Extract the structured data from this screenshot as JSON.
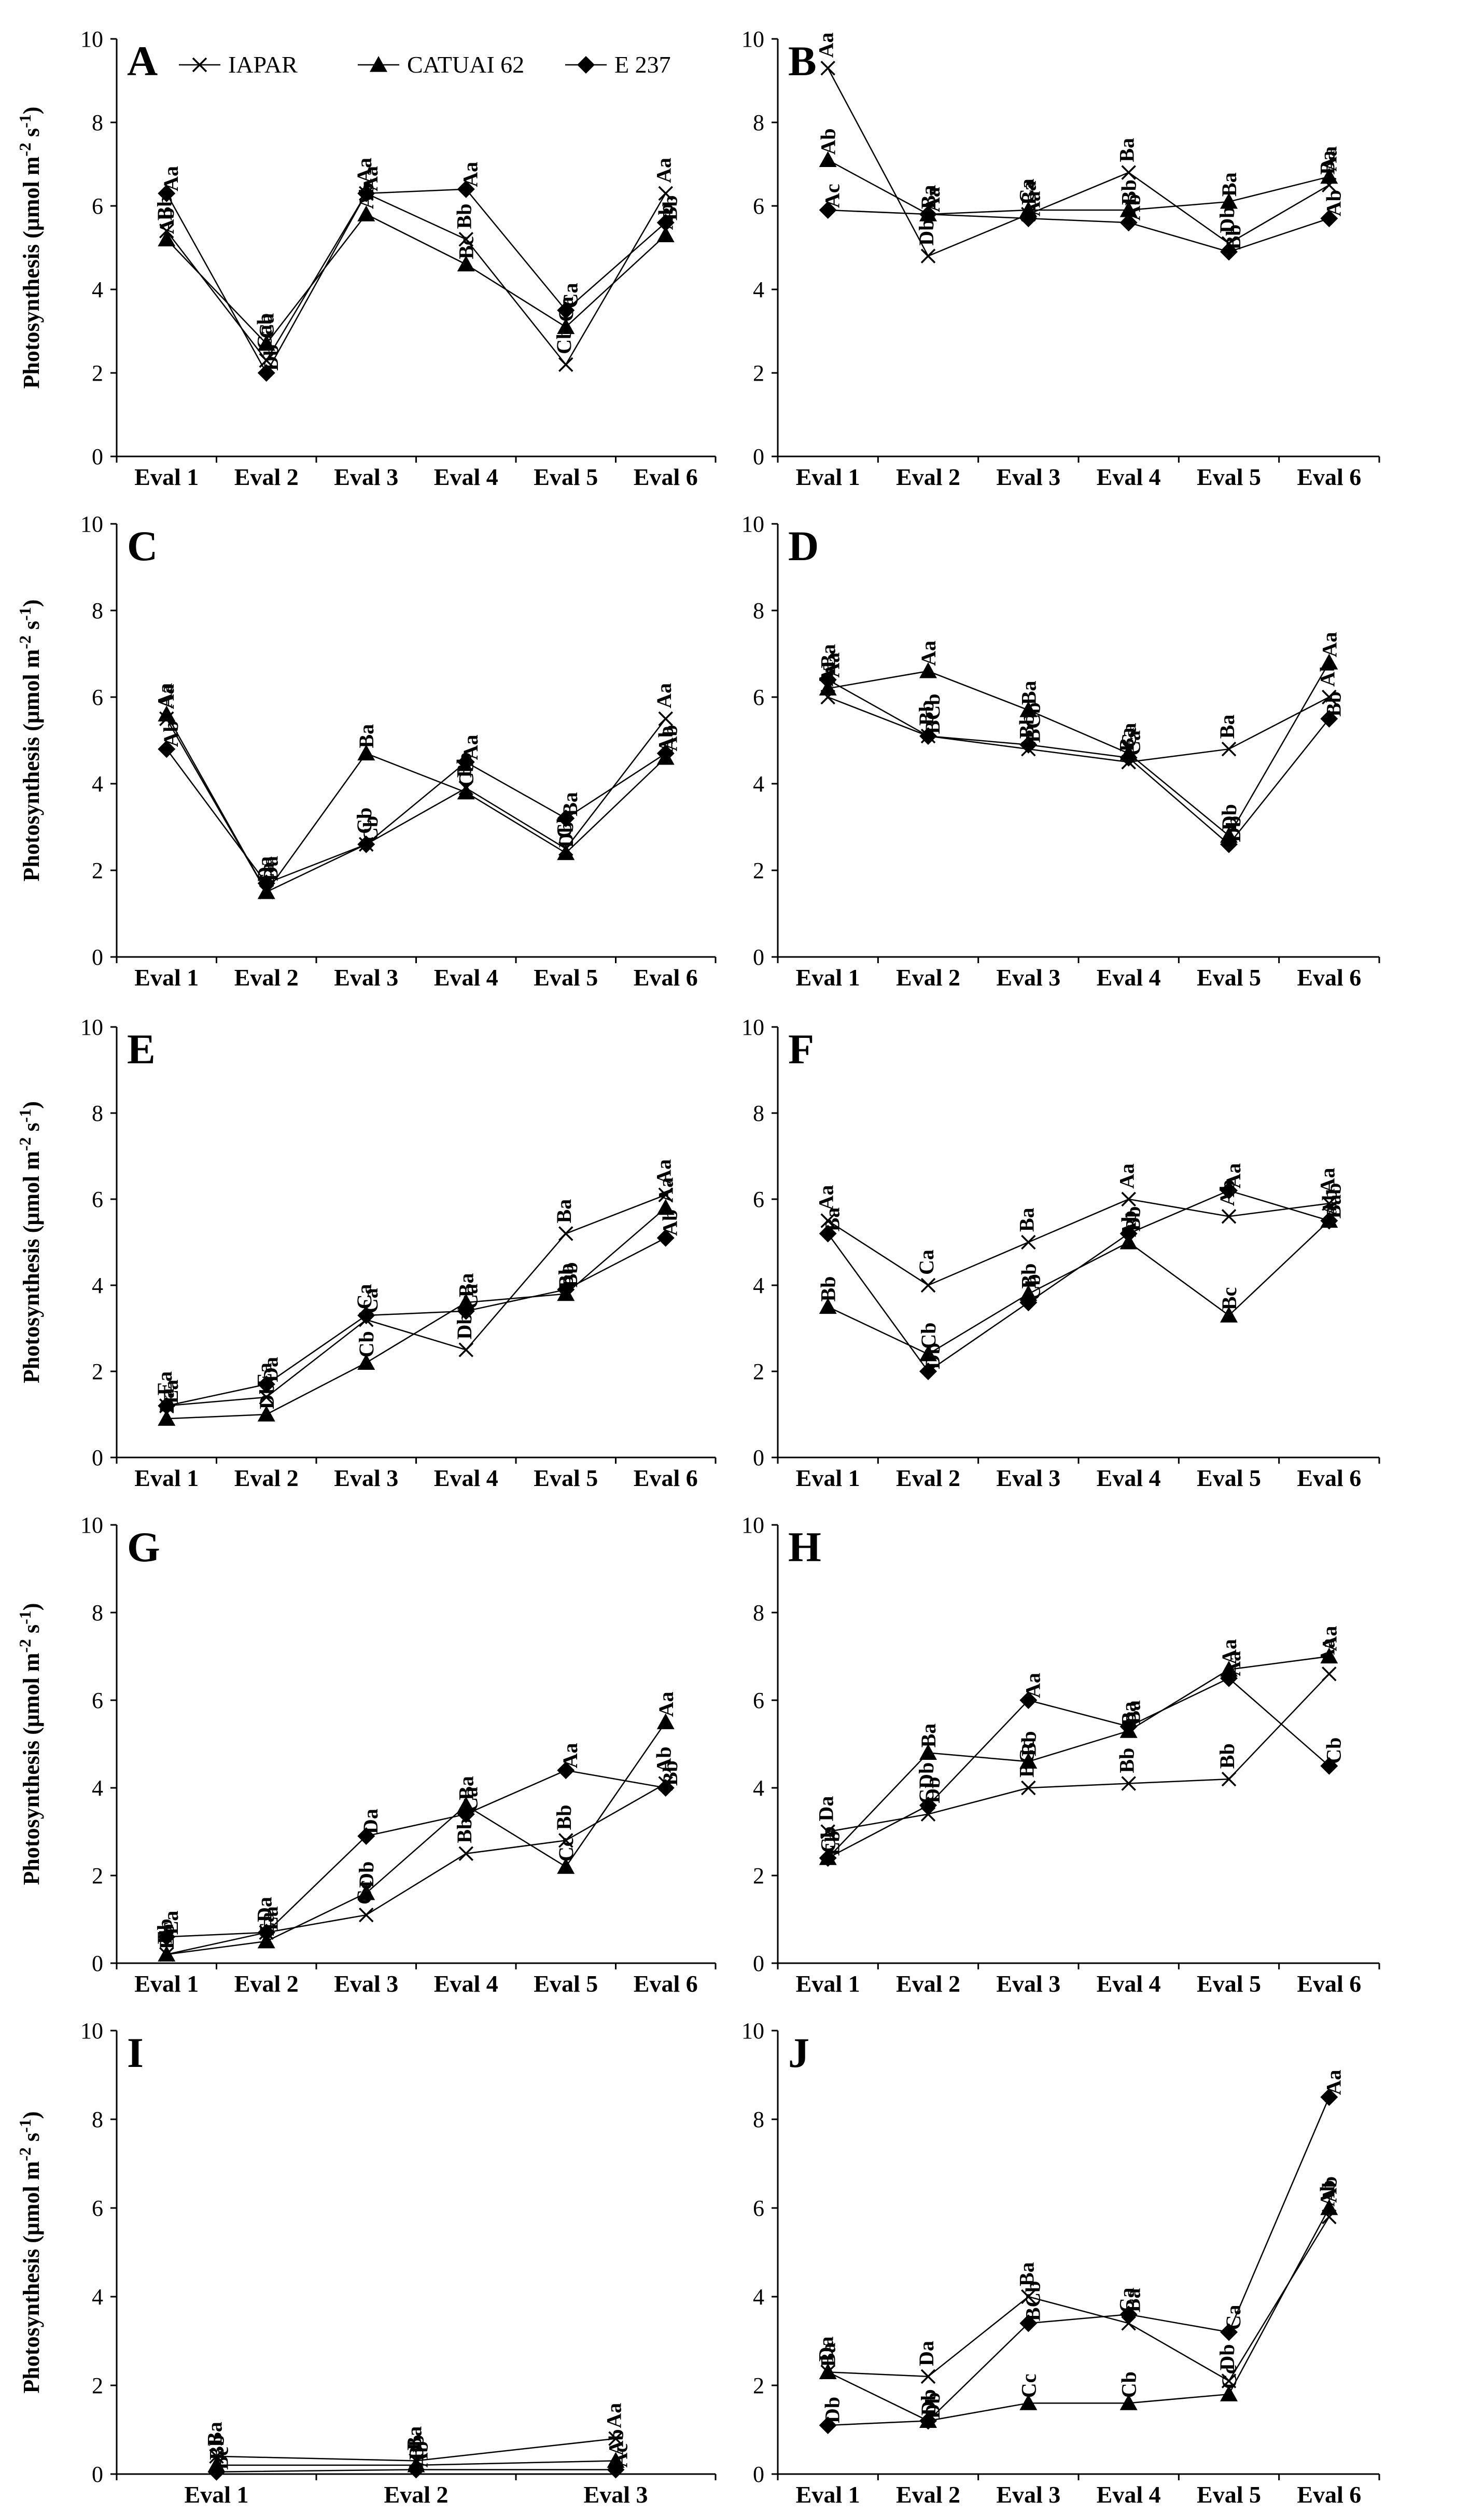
{
  "legend": {
    "entries": [
      "IAPAR",
      "CATUAI 62",
      "E 237"
    ]
  },
  "axis": {
    "ylabel_main": "Photosynthesis (μmol m",
    "ylabel_sup1": "-2",
    "ylabel_mid": " s",
    "ylabel_sup2": "-1",
    "ylabel_end": ")"
  },
  "chart_data": [
    {
      "panel": "A",
      "type": "line",
      "title": "A",
      "ylabel": "Photosynthesis (μmol m-2 s-1)",
      "ylim": [
        0,
        10
      ],
      "yticks": [
        0,
        2,
        4,
        6,
        8,
        10
      ],
      "categories": [
        "Eval 1",
        "Eval 2",
        "Eval 3",
        "Eval 4",
        "Eval 5",
        "Eval 6"
      ],
      "series": [
        {
          "name": "IAPAR",
          "values": [
            5.4,
            2.3,
            6.3,
            5.2,
            2.2,
            6.3
          ],
          "labels": [
            "Bb",
            "Cab",
            "Aa",
            "Bb",
            "Cb",
            "Aa"
          ]
        },
        {
          "name": "CATUAI 62",
          "values": [
            5.2,
            2.7,
            5.8,
            4.6,
            3.1,
            5.3
          ],
          "labels": [
            "Ab",
            "Ca",
            "Ab",
            "Bc",
            "Ca",
            "Ab"
          ]
        },
        {
          "name": "E 237",
          "values": [
            6.3,
            2.0,
            6.3,
            6.4,
            3.5,
            5.6
          ],
          "labels": [
            "Aa",
            "Db",
            "Aa",
            "Aa",
            "Ca",
            "Bb"
          ]
        }
      ]
    },
    {
      "panel": "B",
      "type": "line",
      "title": "B",
      "ylabel": "",
      "ylim": [
        0,
        10
      ],
      "yticks": [
        0,
        2,
        4,
        6,
        8,
        10
      ],
      "categories": [
        "Eval 1",
        "Eval 2",
        "Eval 3",
        "Eval 4",
        "Eval 5",
        "Eval 6"
      ],
      "series": [
        {
          "name": "IAPAR",
          "values": [
            9.3,
            4.8,
            5.8,
            6.8,
            5.1,
            6.5
          ],
          "labels": [
            "Aa",
            "Db",
            "Ca",
            "Ba",
            "Db",
            "Ba"
          ]
        },
        {
          "name": "CATUAI 62",
          "values": [
            7.1,
            5.8,
            5.9,
            5.9,
            6.1,
            6.7
          ],
          "labels": [
            "Ab",
            "Ba",
            "Ba",
            "Bb",
            "Ba",
            "Aa"
          ]
        },
        {
          "name": "E 237",
          "values": [
            5.9,
            5.8,
            5.7,
            5.6,
            4.9,
            5.7
          ],
          "labels": [
            "Ac",
            "Aa",
            "Aa",
            "Ab",
            "Bb",
            "Ab"
          ]
        }
      ]
    },
    {
      "panel": "C",
      "type": "line",
      "title": "C",
      "ylabel": "Photosynthesis (μmol m-2 s-1)",
      "ylim": [
        0,
        10
      ],
      "yticks": [
        0,
        2,
        4,
        6,
        8,
        10
      ],
      "categories": [
        "Eval 1",
        "Eval 2",
        "Eval 3",
        "Eval 4",
        "Eval 5",
        "Eval 6"
      ],
      "series": [
        {
          "name": "IAPAR",
          "values": [
            5.5,
            1.5,
            2.6,
            3.9,
            2.5,
            5.5
          ],
          "labels": [
            "Aa",
            "Da",
            "Cb",
            "Bb",
            "Cb",
            "Aa"
          ]
        },
        {
          "name": "CATUAI 62",
          "values": [
            5.6,
            1.5,
            4.7,
            3.8,
            2.4,
            4.6
          ],
          "labels": [
            "Aa",
            "Ea",
            "Ba",
            "Cb",
            "Db",
            "Ab"
          ]
        },
        {
          "name": "E 237",
          "values": [
            4.8,
            1.7,
            2.6,
            4.5,
            3.2,
            4.7
          ],
          "labels": [
            "Ab",
            "Da",
            "Cb",
            "Aa",
            "Ba",
            "Ab"
          ]
        }
      ]
    },
    {
      "panel": "D",
      "type": "line",
      "title": "D",
      "ylabel": "",
      "ylim": [
        0,
        10
      ],
      "yticks": [
        0,
        2,
        4,
        6,
        8,
        10
      ],
      "categories": [
        "Eval 1",
        "Eval 2",
        "Eval 3",
        "Eval 4",
        "Eval 5",
        "Eval 6"
      ],
      "series": [
        {
          "name": "IAPAR",
          "values": [
            6.0,
            5.1,
            4.8,
            4.5,
            4.8,
            6.0
          ],
          "labels": [
            "Aa",
            "Bb",
            "Bb",
            "Ba",
            "Ba",
            "Ab"
          ]
        },
        {
          "name": "CATUAI 62",
          "values": [
            6.2,
            6.6,
            5.7,
            4.7,
            2.8,
            6.8
          ],
          "labels": [
            "ABa",
            "Aa",
            "Ba",
            "Ca",
            "Db",
            "Aa"
          ]
        },
        {
          "name": "E 237",
          "values": [
            6.4,
            5.1,
            4.9,
            4.6,
            2.6,
            5.5
          ],
          "labels": [
            "Aa",
            "BCb",
            "BCb",
            "Ca",
            "Db",
            "Bb"
          ]
        }
      ]
    },
    {
      "panel": "E",
      "type": "line",
      "title": "E",
      "ylabel": "Photosynthesis (μmol m-2 s-1)",
      "ylim": [
        0,
        10
      ],
      "yticks": [
        0,
        2,
        4,
        6,
        8,
        10
      ],
      "categories": [
        "Eval 1",
        "Eval 2",
        "Eval 3",
        "Eval 4",
        "Eval 5",
        "Eval 6"
      ],
      "series": [
        {
          "name": "IAPAR",
          "values": [
            1.2,
            1.4,
            3.2,
            2.5,
            5.2,
            6.1
          ],
          "labels": [
            "Ea",
            "Ea",
            "Ca",
            "Db",
            "Ba",
            "Aa"
          ]
        },
        {
          "name": "CATUAI 62",
          "values": [
            0.9,
            1.0,
            2.2,
            3.6,
            3.8,
            5.8
          ],
          "labels": [
            "Da",
            "Db",
            "Cb",
            "Ba",
            "Bb",
            "Aa"
          ]
        },
        {
          "name": "E 237",
          "values": [
            1.2,
            1.7,
            3.3,
            3.4,
            3.9,
            5.1
          ],
          "labels": [
            "Ea",
            "Da",
            "Ca",
            "Ca",
            "Bb",
            "Ab"
          ]
        }
      ]
    },
    {
      "panel": "F",
      "type": "line",
      "title": "F",
      "ylabel": "",
      "ylim": [
        0,
        10
      ],
      "yticks": [
        0,
        2,
        4,
        6,
        8,
        10
      ],
      "categories": [
        "Eval 1",
        "Eval 2",
        "Eval 3",
        "Eval 4",
        "Eval 5",
        "Eval 6"
      ],
      "series": [
        {
          "name": "IAPAR",
          "values": [
            5.5,
            4.0,
            5.0,
            6.0,
            5.6,
            5.9
          ],
          "labels": [
            "Aa",
            "Ca",
            "Ba",
            "Aa",
            "Ab",
            "Aa"
          ]
        },
        {
          "name": "CATUAI 62",
          "values": [
            3.5,
            2.4,
            3.8,
            5.0,
            3.3,
            5.5
          ],
          "labels": [
            "Bb",
            "Cb",
            "Bb",
            "Ab",
            "Bc",
            "Ab"
          ]
        },
        {
          "name": "E 237",
          "values": [
            5.2,
            2.0,
            3.6,
            5.2,
            6.2,
            5.5
          ],
          "labels": [
            "Ba",
            "Db",
            "Cb",
            "Bb",
            "Aa",
            "Bab"
          ]
        }
      ]
    },
    {
      "panel": "G",
      "type": "line",
      "title": "G",
      "ylabel": "Photosynthesis (μmol m-2 s-1)",
      "ylim": [
        0,
        10
      ],
      "yticks": [
        0,
        2,
        4,
        6,
        8,
        10
      ],
      "categories": [
        "Eval 1",
        "Eval 2",
        "Eval 3",
        "Eval 4",
        "Eval 5",
        "Eval 6"
      ],
      "series": [
        {
          "name": "IAPAR",
          "values": [
            0.2,
            0.7,
            1.1,
            2.5,
            2.8,
            4.1
          ],
          "labels": [
            "Eb",
            "Da",
            "Cc",
            "Bb",
            "Bb",
            "Ab"
          ]
        },
        {
          "name": "CATUAI 62",
          "values": [
            0.2,
            0.5,
            1.6,
            3.6,
            2.2,
            5.5
          ],
          "labels": [
            "Eb",
            "Ea",
            "Db",
            "Ba",
            "Cc",
            "Aa"
          ]
        },
        {
          "name": "E 237",
          "values": [
            0.6,
            0.7,
            2.9,
            3.4,
            4.4,
            4.0
          ],
          "labels": [
            "Ea",
            "Ea",
            "Da",
            "Ca",
            "Aa",
            "Bb"
          ]
        }
      ]
    },
    {
      "panel": "H",
      "type": "line",
      "title": "H",
      "ylabel": "",
      "ylim": [
        0,
        10
      ],
      "yticks": [
        0,
        2,
        4,
        6,
        8,
        10
      ],
      "categories": [
        "Eval 1",
        "Eval 2",
        "Eval 3",
        "Eval 4",
        "Eval 5",
        "Eval 6"
      ],
      "series": [
        {
          "name": "IAPAR",
          "values": [
            3.0,
            3.4,
            4.0,
            4.1,
            4.2,
            6.6
          ],
          "labels": [
            "Da",
            "CDb",
            "BCc",
            "Bb",
            "Bb",
            "Aa"
          ]
        },
        {
          "name": "CATUAI 62",
          "values": [
            2.4,
            4.8,
            4.6,
            5.3,
            6.7,
            7.0
          ],
          "labels": [
            "Cb",
            "Ba",
            "Bb",
            "Ba",
            "Aa",
            "Aa"
          ]
        },
        {
          "name": "E 237",
          "values": [
            2.4,
            3.6,
            6.0,
            5.4,
            6.5,
            4.5
          ],
          "labels": [
            "Eb",
            "Db",
            "Aa",
            "Ba",
            "Aa",
            "Cb"
          ]
        }
      ]
    },
    {
      "panel": "I",
      "type": "line",
      "title": "I",
      "ylabel": "Photosynthesis (μmol m-2 s-1)",
      "ylim": [
        0,
        10
      ],
      "yticks": [
        0,
        2,
        4,
        6,
        8,
        10
      ],
      "categories": [
        "Eval 1",
        "Eval 2",
        "Eval 3"
      ],
      "series": [
        {
          "name": "IAPAR",
          "values": [
            0.4,
            0.3,
            0.8
          ],
          "labels": [
            "Ba",
            "Ba",
            "Aa"
          ]
        },
        {
          "name": "CATUAI 62",
          "values": [
            0.2,
            0.2,
            0.3
          ],
          "labels": [
            "Bb",
            "Bb",
            "Ab"
          ]
        },
        {
          "name": "E 237",
          "values": [
            0.05,
            0.1,
            0.1
          ],
          "labels": [
            "Bc",
            "Ab",
            "Ac"
          ]
        }
      ]
    },
    {
      "panel": "J",
      "type": "line",
      "title": "J",
      "ylabel": "",
      "ylim": [
        0,
        10
      ],
      "yticks": [
        0,
        2,
        4,
        6,
        8,
        10
      ],
      "categories": [
        "Eval 1",
        "Eval 2",
        "Eval 3",
        "Eval 4",
        "Eval 5",
        "Eval 6"
      ],
      "series": [
        {
          "name": "IAPAR",
          "values": [
            2.3,
            2.2,
            4.0,
            3.4,
            2.1,
            5.8
          ],
          "labels": [
            "Da",
            "Da",
            "Ba",
            "Ca",
            "Db",
            "Ab"
          ]
        },
        {
          "name": "CATUAI 62",
          "values": [
            2.3,
            1.2,
            1.6,
            1.6,
            1.8,
            6.0
          ],
          "labels": [
            "Ba",
            "Db",
            "Cc",
            "Cb",
            "Cc",
            "Ab"
          ]
        },
        {
          "name": "E 237",
          "values": [
            1.1,
            1.2,
            3.4,
            3.6,
            3.2,
            8.5
          ],
          "labels": [
            "Db",
            "Db",
            "BCb",
            "Ba",
            "Ca",
            "Aa"
          ]
        }
      ]
    }
  ]
}
